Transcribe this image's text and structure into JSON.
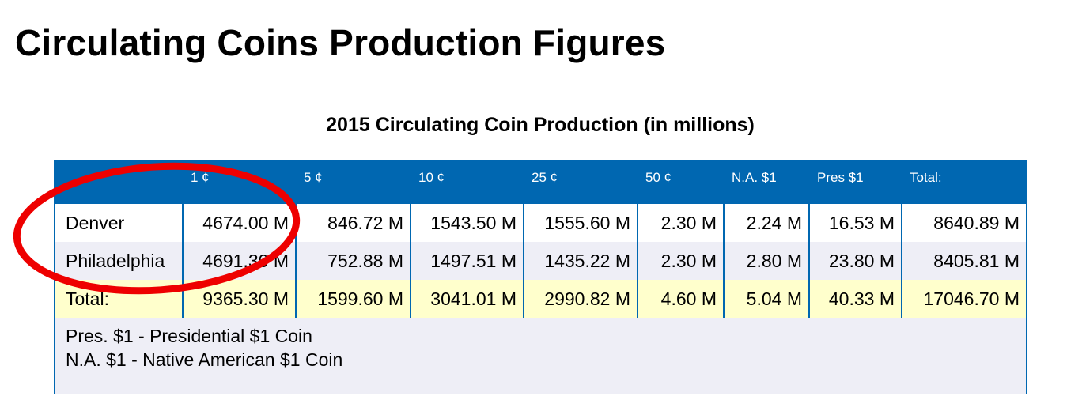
{
  "page": {
    "title": "Circulating Coins Production Figures"
  },
  "table": {
    "caption": "2015 Circulating Coin Production (in millions)",
    "headers": [
      "",
      "1 ¢",
      "5 ¢",
      "10 ¢",
      "25 ¢",
      "50 ¢",
      "N.A. $1",
      "Pres $1",
      "Total:"
    ],
    "rows": [
      {
        "label": "Denver",
        "values": [
          "4674.00 M",
          "846.72 M",
          "1543.50 M",
          "1555.60 M",
          "2.30 M",
          "2.24 M",
          "16.53 M",
          "8640.89 M"
        ]
      },
      {
        "label": "Philadelphia",
        "values": [
          "4691.30 M",
          "752.88 M",
          "1497.51 M",
          "1435.22 M",
          "2.30 M",
          "2.80 M",
          "23.80 M",
          "8405.81 M"
        ]
      },
      {
        "label": "Total:",
        "values": [
          "9365.30 M",
          "1599.60 M",
          "3041.01 M",
          "2990.82 M",
          "4.60 M",
          "5.04 M",
          "40.33 M",
          "17046.70 M"
        ]
      }
    ],
    "notes": [
      "Pres. $1 - Presidential $1 Coin",
      "N.A. $1 - Native American $1 Coin"
    ]
  },
  "colors": {
    "header_blue": "#0067b1",
    "row_grey": "#eeeef6",
    "total_yellow": "#ffffcc",
    "annotation_red": "#ee0000"
  }
}
